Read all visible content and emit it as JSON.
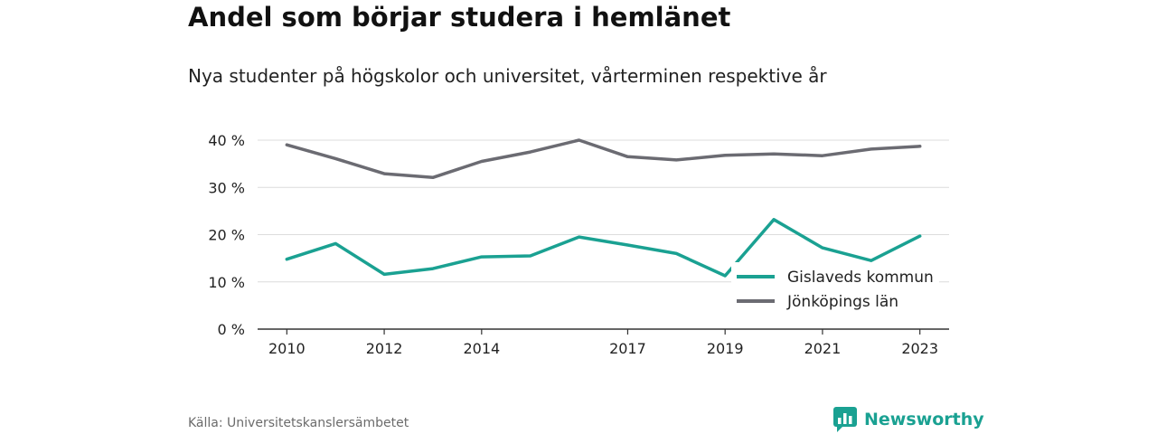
{
  "title": "Andel som börjar studera i hemlänet",
  "subtitle": "Nya studenter på högskolor och universitet, vårterminen respektive år",
  "source": "Källa: Universitetskanslersämbetet",
  "brand": {
    "name": "Newsworthy",
    "icon": "newsworthy-logo-icon",
    "color": "#1aa192"
  },
  "chart_data": {
    "type": "line",
    "x": [
      2010,
      2011,
      2012,
      2013,
      2014,
      2015,
      2016,
      2017,
      2018,
      2019,
      2020,
      2021,
      2022,
      2023
    ],
    "x_ticks": [
      2010,
      2012,
      2014,
      2017,
      2019,
      2021,
      2023
    ],
    "y_ticks": [
      0,
      10,
      20,
      30,
      40
    ],
    "y_tick_labels": [
      "0 %",
      "10 %",
      "20 %",
      "30 %",
      "40 %"
    ],
    "ylim": [
      0,
      40
    ],
    "xlim": [
      2009.4,
      2023.6
    ],
    "grid": true,
    "legend_position": "bottom-right",
    "series": [
      {
        "name": "Gislaveds kommun",
        "color": "#1aa192",
        "values": [
          14.8,
          18.1,
          11.6,
          12.8,
          15.3,
          15.5,
          19.5,
          17.8,
          16.0,
          11.3,
          23.2,
          17.2,
          14.5,
          19.7
        ]
      },
      {
        "name": "Jönköpings län",
        "color": "#6b6b72",
        "values": [
          39.0,
          36.1,
          32.9,
          32.1,
          35.5,
          37.5,
          40.0,
          36.5,
          35.8,
          36.8,
          37.1,
          36.7,
          38.1,
          38.7
        ]
      }
    ]
  }
}
